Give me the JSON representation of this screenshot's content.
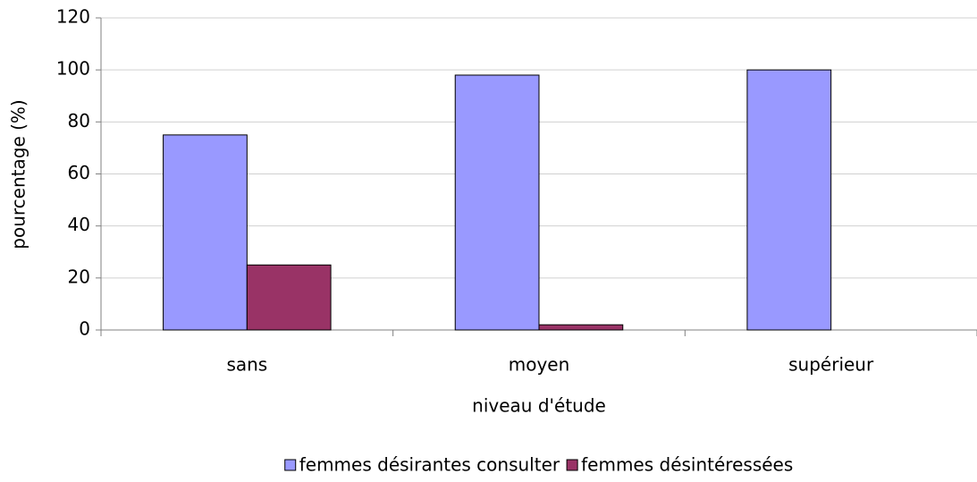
{
  "chart_data": {
    "type": "bar",
    "xlabel": "niveau d'étude",
    "ylabel": "pourcentage (%)",
    "categories": [
      "sans",
      "moyen",
      "supérieur"
    ],
    "series": [
      {
        "name": "femmes désirantes consulter",
        "color": "#9999ff",
        "values": [
          75,
          98,
          100
        ]
      },
      {
        "name": "femmes désintéressées",
        "color": "#993366",
        "values": [
          25,
          2,
          0
        ]
      }
    ],
    "ylim": [
      0,
      120
    ],
    "yticks": [
      0,
      20,
      40,
      60,
      80,
      100,
      120
    ],
    "grid": true,
    "legend": "bottom"
  }
}
